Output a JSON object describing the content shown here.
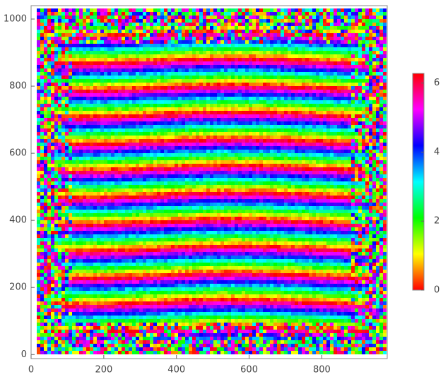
{
  "chart_data": {
    "type": "heatmap",
    "xlim": [
      0,
      980
    ],
    "xticks": [
      0,
      200,
      400,
      600,
      800
    ],
    "ylim": [
      -12,
      1040
    ],
    "yticks": [
      0,
      200,
      400,
      600,
      800,
      1000
    ],
    "colorbar": {
      "lim": [
        0,
        6.28
      ],
      "ticks": [
        0,
        2,
        4,
        6
      ]
    }
  }
}
